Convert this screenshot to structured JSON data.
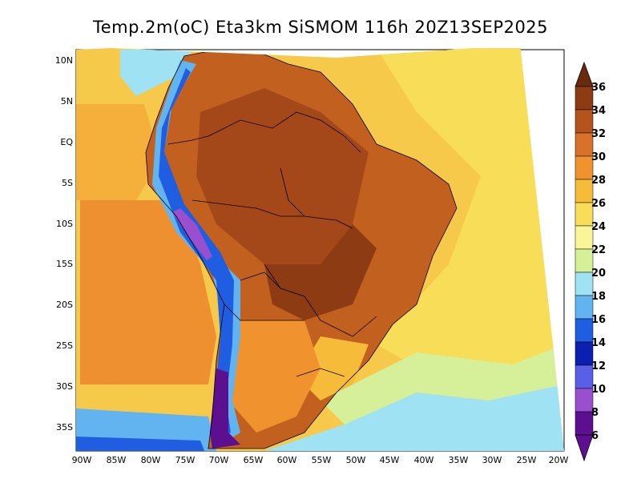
{
  "title": "Temp.2m(oC) Eta3km SiSMOM 116h 20Z13SEP2025",
  "map": {
    "variable": "2 m air temperature",
    "units": "oC",
    "lat_labels": [
      "10N",
      "5N",
      "EQ",
      "5S",
      "10S",
      "15S",
      "20S",
      "25S",
      "30S",
      "35S"
    ],
    "lon_labels": [
      "90W",
      "85W",
      "80W",
      "75W",
      "70W",
      "65W",
      "60W",
      "55W",
      "50W",
      "45W",
      "40W",
      "35W",
      "30W",
      "25W",
      "20W"
    ]
  },
  "colorbar": {
    "labels": [
      "36",
      "34",
      "32",
      "30",
      "28",
      "26",
      "24",
      "22",
      "20",
      "18",
      "16",
      "14",
      "12",
      "10",
      "8",
      "6"
    ],
    "colors": [
      "#6b2a0c",
      "#8c3b12",
      "#b4541c",
      "#d9712a",
      "#f0932e",
      "#f7bb3a",
      "#f8dd58",
      "#fbf59a",
      "#d6f09a",
      "#9fe2f4",
      "#62b4f0",
      "#1f5ee0",
      "#0b1fb0",
      "#5a5fe8",
      "#9a4fcf",
      "#5c0f8f"
    ]
  }
}
